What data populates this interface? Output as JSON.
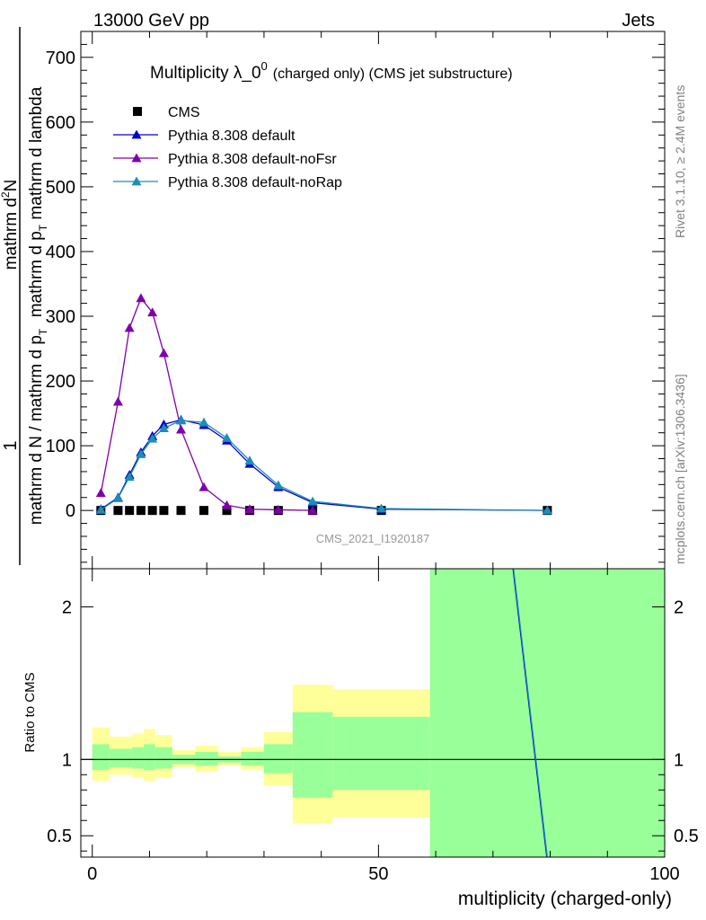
{
  "header": {
    "left": "13000 GeV pp",
    "right": "Jets"
  },
  "side_text": {
    "rivet": "Rivet 3.1.10, ≥ 2.4M events",
    "mcplots": "mcplots.cern.ch [arXiv:1306.3436]"
  },
  "chart_data": [
    {
      "type": "line",
      "title": "Multiplicity λ_0",
      "title_sup": "0",
      "title_note": "(charged only) (CMS jet substructure)",
      "ylabel_top": "1",
      "ylabel_top_den": "mathrm d N / mathrm d p",
      "ylabel_num": "mathrm d",
      "ylabel_num_sup": "2",
      "ylabel_num_end": "N",
      "ylabel_den": "mathrm d p",
      "ylabel_den_sub": "T",
      "ylabel_den_end": " mathrm d lambda",
      "ylabel_mid_sub": "T",
      "watermark": "CMS_2021_I1920187",
      "xlim": [
        -2,
        100
      ],
      "ylim": [
        -90,
        740
      ],
      "yticks": [
        0,
        100,
        200,
        300,
        400,
        500,
        600,
        700
      ],
      "legend_position": "top-left",
      "series": [
        {
          "name": "CMS",
          "color": "#000000",
          "marker": "square",
          "x": [
            1.5,
            4.5,
            6.5,
            8.5,
            10.5,
            12.5,
            15.5,
            19.5,
            23.5,
            27.5,
            32.5,
            38.5,
            50.5,
            79.5
          ],
          "y": [
            0,
            0,
            0,
            0,
            0,
            0,
            0,
            0,
            0,
            0,
            0,
            0,
            0,
            0
          ]
        },
        {
          "name": "Pythia 8.308 default",
          "color": "#0000cc",
          "marker": "triangle",
          "x": [
            1.5,
            4.5,
            6.5,
            8.5,
            10.5,
            12.5,
            15.5,
            19.5,
            23.5,
            27.5,
            32.5,
            38.5,
            50.5,
            79.5
          ],
          "y": [
            2,
            20,
            55,
            90,
            115,
            133,
            140,
            132,
            108,
            72,
            36,
            12,
            2,
            0
          ]
        },
        {
          "name": "Pythia 8.308 default-noFsr",
          "color": "#7f00aa",
          "marker": "triangle",
          "x": [
            1.5,
            4.5,
            6.5,
            8.5,
            10.5,
            12.5,
            15.5,
            19.5,
            23.5,
            27.5,
            32.5,
            38.5
          ],
          "y": [
            27,
            168,
            282,
            328,
            306,
            243,
            125,
            36,
            8,
            2,
            1,
            0
          ]
        },
        {
          "name": "Pythia 8.308 default-noRap",
          "color": "#1a8fb5",
          "marker": "triangle",
          "x": [
            1.5,
            4.5,
            6.5,
            8.5,
            10.5,
            12.5,
            15.5,
            19.5,
            23.5,
            27.5,
            32.5,
            38.5,
            50.5,
            79.5
          ],
          "y": [
            1,
            19,
            52,
            87,
            111,
            127,
            139,
            136,
            112,
            77,
            39,
            14,
            3,
            0
          ]
        }
      ]
    },
    {
      "type": "area",
      "ylabel": "Ratio to CMS",
      "xlabel": "multiplicity (charged-only)",
      "xlim": [
        -2,
        100
      ],
      "ylim": [
        0.36,
        2.25
      ],
      "yticks": [
        0.5,
        1,
        2
      ],
      "ytick_labels": [
        "0.5",
        "1",
        "2"
      ],
      "xticks": [
        0,
        50,
        100
      ],
      "band_colors": {
        "stat": "#99ff99",
        "total": "#ffff99",
        "line": "#0000cc",
        "line2": "#1a8fb5"
      },
      "bins": [
        {
          "x0": 0,
          "x1": 3,
          "stat_lo": 0.93,
          "stat_hi": 1.1,
          "tot_lo": 0.86,
          "tot_hi": 1.21
        },
        {
          "x0": 3,
          "x1": 7,
          "stat_lo": 0.95,
          "stat_hi": 1.07,
          "tot_lo": 0.9,
          "tot_hi": 1.15
        },
        {
          "x0": 7,
          "x1": 9,
          "stat_lo": 0.94,
          "stat_hi": 1.08,
          "tot_lo": 0.88,
          "tot_hi": 1.17
        },
        {
          "x0": 9,
          "x1": 11,
          "stat_lo": 0.93,
          "stat_hi": 1.1,
          "tot_lo": 0.86,
          "tot_hi": 1.2
        },
        {
          "x0": 11,
          "x1": 14,
          "stat_lo": 0.94,
          "stat_hi": 1.08,
          "tot_lo": 0.88,
          "tot_hi": 1.16
        },
        {
          "x0": 14,
          "x1": 18,
          "stat_lo": 0.97,
          "stat_hi": 1.03,
          "tot_lo": 0.95,
          "tot_hi": 1.06
        },
        {
          "x0": 18,
          "x1": 22,
          "stat_lo": 0.96,
          "stat_hi": 1.05,
          "tot_lo": 0.92,
          "tot_hi": 1.09
        },
        {
          "x0": 22,
          "x1": 26,
          "stat_lo": 0.98,
          "stat_hi": 1.02,
          "tot_lo": 0.96,
          "tot_hi": 1.05
        },
        {
          "x0": 26,
          "x1": 30,
          "stat_lo": 0.96,
          "stat_hi": 1.05,
          "tot_lo": 0.93,
          "tot_hi": 1.08
        },
        {
          "x0": 30,
          "x1": 35,
          "stat_lo": 0.91,
          "stat_hi": 1.1,
          "tot_lo": 0.83,
          "tot_hi": 1.18
        },
        {
          "x0": 35,
          "x1": 42,
          "stat_lo": 0.75,
          "stat_hi": 1.31,
          "tot_lo": 0.58,
          "tot_hi": 1.49
        },
        {
          "x0": 42,
          "x1": 59,
          "stat_lo": 0.8,
          "stat_hi": 1.28,
          "tot_lo": 0.62,
          "tot_hi": 1.46
        },
        {
          "x0": 59,
          "x1": 100,
          "stat_lo": 0.36,
          "stat_hi": 2.25,
          "tot_lo": 0.36,
          "tot_hi": 2.25
        }
      ],
      "ratio_lines": [
        {
          "name": "Pythia 8.308 default",
          "x": [
            73.5,
            79.4
          ],
          "y": [
            2.25,
            0.36
          ]
        },
        {
          "name": "Pythia 8.308 default-noRap",
          "x": [
            73.6,
            79.5
          ],
          "y": [
            2.25,
            0.36
          ]
        }
      ]
    }
  ]
}
